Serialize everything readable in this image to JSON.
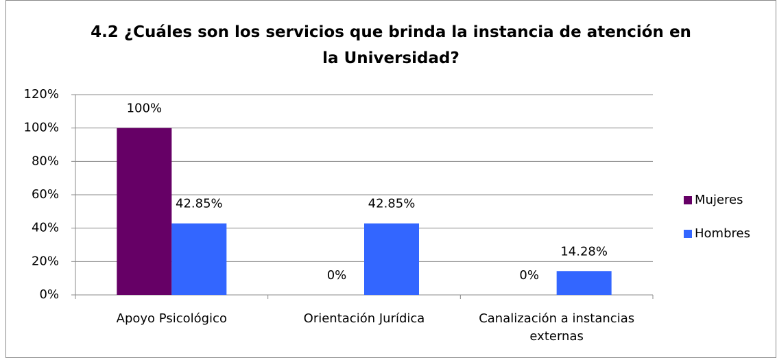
{
  "chart_data": {
    "type": "bar",
    "title": "4.2 ¿Cuáles son los servicios que brinda la instancia de atención en la Universidad?",
    "categories": [
      "Apoyo Psicológico",
      "Orientación Jurídica",
      "Canalización a instancias externas"
    ],
    "series": [
      {
        "name": "Mujeres",
        "color": "#660066",
        "values": [
          100,
          0,
          0
        ],
        "value_labels": [
          "100%",
          "0%",
          "0%"
        ]
      },
      {
        "name": "Hombres",
        "color": "#3366FF",
        "values": [
          42.85,
          42.85,
          14.28
        ],
        "value_labels": [
          "42.85%",
          "42.85%",
          "14.28%"
        ]
      }
    ],
    "ylim": [
      0,
      120
    ],
    "yticks": [
      {
        "value": 0,
        "label": "0%"
      },
      {
        "value": 20,
        "label": "20%"
      },
      {
        "value": 40,
        "label": "40%"
      },
      {
        "value": 60,
        "label": "60%"
      },
      {
        "value": 80,
        "label": "80%"
      },
      {
        "value": 100,
        "label": "100%"
      },
      {
        "value": 120,
        "label": "120%"
      }
    ],
    "grid": true,
    "legend": "right"
  }
}
